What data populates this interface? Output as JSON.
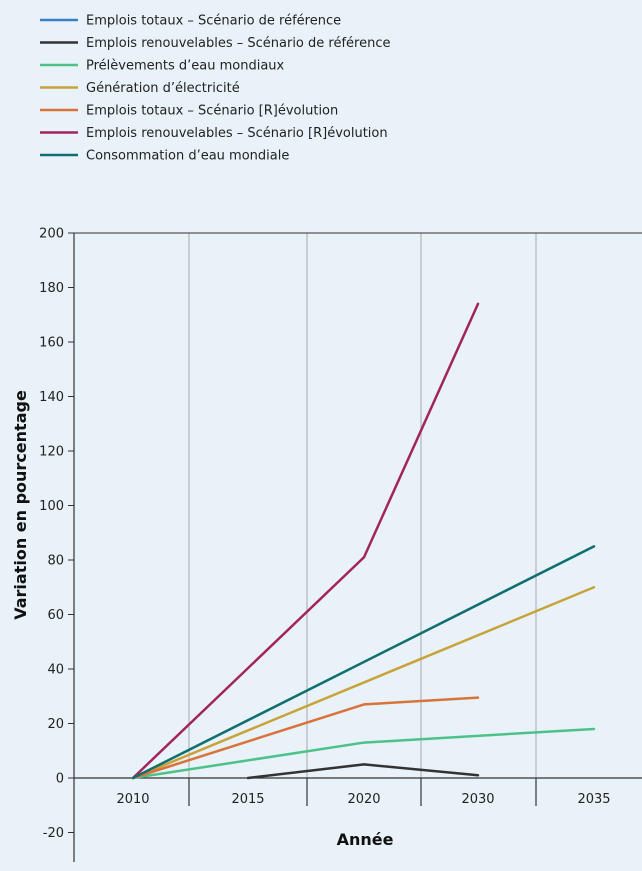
{
  "chart_data": {
    "type": "line",
    "categories": [
      "2010",
      "2015",
      "2020",
      "2030",
      "2035"
    ],
    "xlabel": "Année",
    "ylabel": "Variation en pourcentage",
    "ylim": [
      -20,
      200
    ],
    "yticks": [
      -20,
      0,
      20,
      40,
      60,
      80,
      100,
      120,
      140,
      160,
      180,
      200
    ],
    "grid": "vertical",
    "legend": "top-left",
    "series": [
      {
        "name": "Emplois totaux – Scénario de référence",
        "color": "#3d7fc4",
        "values": [
          null,
          null,
          null,
          null,
          null
        ]
      },
      {
        "name": "Emplois renouvelables – Scénario de référence",
        "color": "#333333",
        "values": [
          null,
          0,
          5,
          1,
          null
        ]
      },
      {
        "name": "Prélèvements d’eau mondiaux",
        "color": "#4cc28a",
        "values": [
          0,
          null,
          13,
          null,
          18
        ]
      },
      {
        "name": "Génération d’électricité",
        "color": "#c9a23a",
        "values": [
          0,
          null,
          null,
          null,
          70
        ]
      },
      {
        "name": "Emplois totaux – Scénario [R]évolution",
        "color": "#d9733a",
        "values": [
          0,
          null,
          27,
          29.5,
          null
        ]
      },
      {
        "name": "Emplois renouvelables – Scénario [R]évolution",
        "color": "#a3245a",
        "values": [
          0,
          null,
          81,
          174,
          null
        ]
      },
      {
        "name": "Consommation d’eau mondiale",
        "color": "#0f6e6e",
        "values": [
          0,
          null,
          null,
          null,
          85
        ]
      }
    ]
  }
}
